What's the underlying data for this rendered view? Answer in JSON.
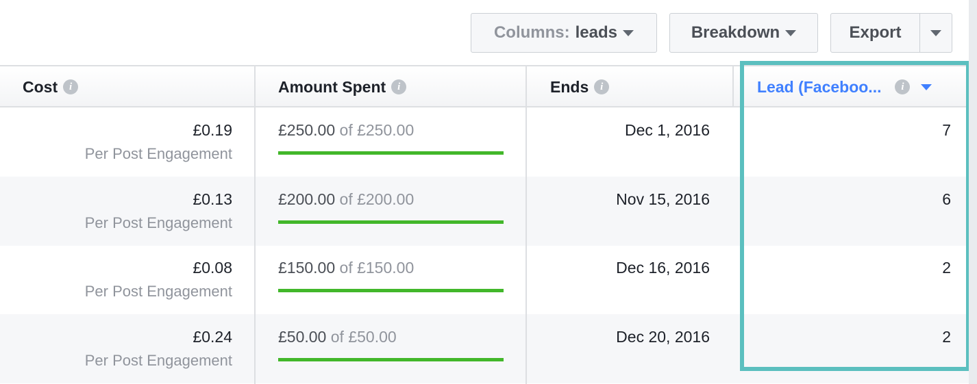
{
  "toolbar": {
    "columns_label": "Columns:",
    "columns_value": "leads",
    "breakdown_label": "Breakdown",
    "export_label": "Export"
  },
  "headers": {
    "cost": "Cost",
    "amount_spent": "Amount Spent",
    "ends": "Ends",
    "lead": "Lead (Faceboo..."
  },
  "colors": {
    "highlight": "#5bbfbf",
    "progress": "#42b72a",
    "accent": "#4080ff"
  },
  "rows": [
    {
      "cost": "£0.19",
      "cost_type": "Per Post Engagement",
      "spent": "£250.00",
      "of": "of £250.00",
      "progress": 100,
      "ends": "Dec 1, 2016",
      "leads": "7"
    },
    {
      "cost": "£0.13",
      "cost_type": "Per Post Engagement",
      "spent": "£200.00",
      "of": "of £200.00",
      "progress": 100,
      "ends": "Nov 15, 2016",
      "leads": "6"
    },
    {
      "cost": "£0.08",
      "cost_type": "Per Post Engagement",
      "spent": "£150.00",
      "of": "of £150.00",
      "progress": 100,
      "ends": "Dec 16, 2016",
      "leads": "2"
    },
    {
      "cost": "£0.24",
      "cost_type": "Per Post Engagement",
      "spent": "£50.00",
      "of": "of £50.00",
      "progress": 100,
      "ends": "Dec 20, 2016",
      "leads": "2"
    }
  ]
}
